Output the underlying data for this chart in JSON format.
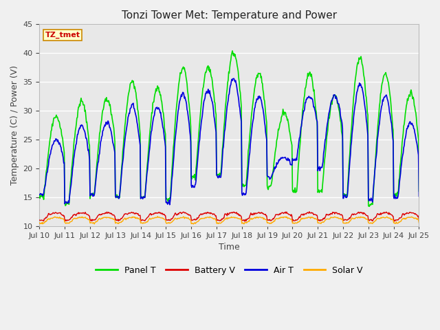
{
  "title": "Tonzi Tower Met: Temperature and Power",
  "xlabel": "Time",
  "ylabel": "Temperature (C) / Power (V)",
  "ylim": [
    10,
    45
  ],
  "xlim": [
    0,
    360
  ],
  "fig_facecolor": "#f0f0f0",
  "plot_bg_color": "#e8e8e8",
  "grid_color": "#ffffff",
  "xtick_labels": [
    "Jul 10",
    "Jul 11",
    "Jul 12",
    "Jul 13",
    "Jul 14",
    "Jul 15",
    "Jul 16",
    "Jul 17",
    "Jul 18",
    "Jul 19",
    "Jul 20",
    "Jul 21",
    "Jul 22",
    "Jul 23",
    "Jul 24",
    "Jul 25"
  ],
  "xtick_positions": [
    0,
    24,
    48,
    72,
    96,
    120,
    144,
    168,
    192,
    216,
    240,
    264,
    288,
    312,
    336,
    360
  ],
  "ytick_values": [
    10,
    15,
    20,
    25,
    30,
    35,
    40,
    45
  ],
  "series": {
    "panel_t": {
      "color": "#00dd00",
      "label": "Panel T",
      "lw": 1.2
    },
    "battery_v": {
      "color": "#dd0000",
      "label": "Battery V",
      "lw": 1.0
    },
    "air_t": {
      "color": "#0000dd",
      "label": "Air T",
      "lw": 1.2
    },
    "solar_v": {
      "color": "#ffaa00",
      "label": "Solar V",
      "lw": 1.0
    }
  },
  "title_fontsize": 11,
  "tick_fontsize": 8,
  "label_fontsize": 9,
  "tz_box": {
    "text": "TZ_tmet",
    "facecolor": "#ffffcc",
    "edgecolor": "#cc8800",
    "textcolor": "#cc0000",
    "fontsize": 8,
    "fontweight": "bold"
  },
  "legend_fontsize": 9,
  "panel_peaks": [
    29,
    31.5,
    32,
    35,
    34,
    37.5,
    37.5,
    40,
    36.5,
    29.5,
    36.5,
    32.5,
    39,
    36.5,
    33
  ],
  "air_peaks": [
    25,
    27.5,
    28,
    31,
    30.5,
    33,
    33.5,
    35.5,
    32.5,
    22,
    32.5,
    32.5,
    34.5,
    32.5,
    28
  ],
  "panel_troughs": [
    15,
    14,
    15.5,
    15,
    15,
    14.5,
    18.5,
    19,
    17,
    17,
    16,
    16,
    15.5,
    13.5,
    15.5
  ],
  "air_troughs": [
    15.5,
    14,
    15.5,
    15,
    15,
    14,
    17,
    18.5,
    15.5,
    18.5,
    21.5,
    20,
    15,
    14.5,
    15
  ]
}
